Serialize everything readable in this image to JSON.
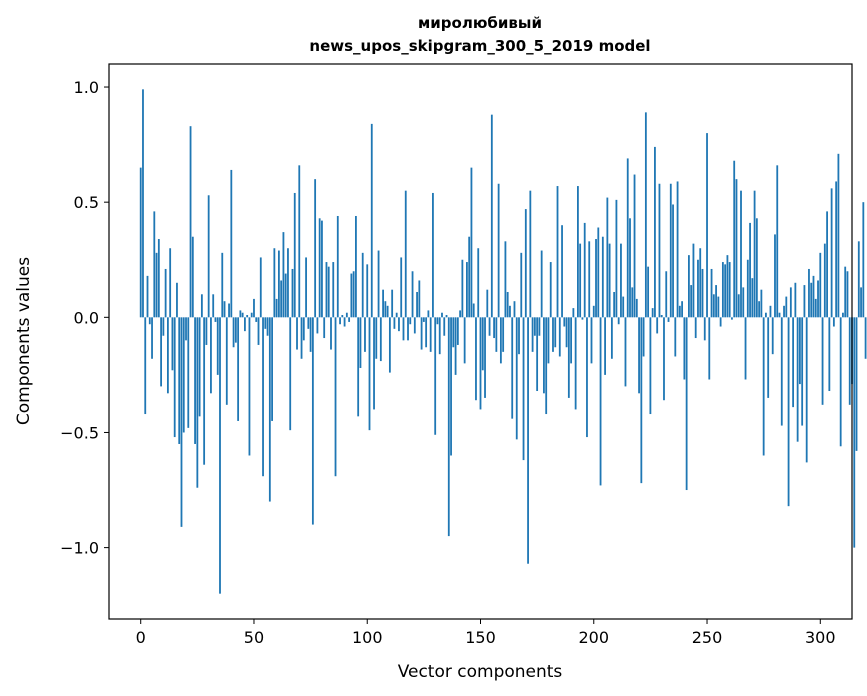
{
  "chart_data": {
    "type": "bar",
    "title_line1": "миролюбивый",
    "title_line2": "news_upos_skipgram_300_5_2019 model",
    "xlabel": "Vector components",
    "ylabel": "Components values",
    "xlim": [
      -14,
      314
    ],
    "ylim": [
      -1.31,
      1.1
    ],
    "xticks": [
      0,
      50,
      100,
      150,
      200,
      250,
      300
    ],
    "xtick_labels": [
      "0",
      "50",
      "100",
      "150",
      "200",
      "250",
      "300"
    ],
    "yticks": [
      -1.0,
      -0.5,
      0.0,
      0.5,
      1.0
    ],
    "ytick_labels": [
      "−1.0",
      "−0.5",
      "0.0",
      "0.5",
      "1.0"
    ],
    "bar_color": "#1f77b4",
    "values": [
      0.65,
      0.99,
      -0.42,
      0.18,
      -0.03,
      -0.18,
      0.46,
      0.28,
      0.34,
      -0.3,
      -0.08,
      0.21,
      -0.33,
      0.3,
      -0.23,
      -0.52,
      0.15,
      -0.55,
      -0.91,
      -0.5,
      -0.1,
      -0.48,
      0.83,
      0.35,
      -0.55,
      -0.74,
      -0.43,
      0.1,
      -0.64,
      -0.12,
      0.53,
      -0.33,
      0.1,
      -0.02,
      -0.25,
      -1.2,
      0.28,
      0.07,
      -0.38,
      0.06,
      0.64,
      -0.13,
      -0.11,
      -0.45,
      0.03,
      0.02,
      -0.06,
      0.01,
      -0.6,
      0.02,
      0.08,
      -0.02,
      -0.12,
      0.26,
      -0.69,
      -0.05,
      -0.08,
      -0.8,
      -0.45,
      0.3,
      0.08,
      0.29,
      0.16,
      0.37,
      0.19,
      0.3,
      -0.49,
      0.21,
      0.54,
      -0.14,
      0.66,
      -0.18,
      -0.1,
      0.26,
      -0.05,
      -0.15,
      -0.9,
      0.6,
      -0.07,
      0.43,
      0.42,
      -0.09,
      0.24,
      0.22,
      -0.14,
      0.24,
      -0.69,
      0.44,
      -0.03,
      0.01,
      -0.04,
      0.02,
      -0.02,
      0.19,
      0.2,
      0.44,
      -0.43,
      -0.22,
      0.28,
      -0.15,
      0.23,
      -0.49,
      0.84,
      -0.4,
      -0.18,
      0.29,
      -0.19,
      0.12,
      0.07,
      0.05,
      -0.24,
      0.12,
      -0.05,
      0.02,
      -0.06,
      0.26,
      -0.1,
      0.55,
      -0.1,
      -0.03,
      0.2,
      -0.07,
      0.11,
      0.16,
      -0.14,
      -0.02,
      -0.13,
      0.03,
      -0.15,
      0.54,
      -0.51,
      -0.03,
      -0.16,
      0.02,
      -0.08,
      0.01,
      -0.95,
      -0.6,
      -0.13,
      -0.25,
      -0.12,
      0.03,
      0.25,
      -0.2,
      0.24,
      0.35,
      0.65,
      0.06,
      -0.36,
      0.3,
      -0.4,
      -0.23,
      -0.35,
      0.12,
      -0.08,
      0.88,
      -0.09,
      -0.15,
      0.58,
      -0.2,
      -0.15,
      0.33,
      0.11,
      0.05,
      -0.44,
      0.07,
      -0.53,
      -0.16,
      0.28,
      -0.62,
      0.47,
      -1.07,
      0.55,
      -0.15,
      -0.08,
      -0.32,
      -0.08,
      0.29,
      -0.33,
      -0.42,
      -0.2,
      0.24,
      -0.15,
      -0.13,
      0.57,
      -0.17,
      0.4,
      -0.04,
      -0.13,
      -0.35,
      -0.2,
      0.04,
      -0.4,
      0.57,
      0.32,
      -0.01,
      0.41,
      -0.52,
      0.33,
      -0.2,
      0.05,
      0.34,
      0.39,
      -0.73,
      0.35,
      -0.25,
      0.52,
      0.32,
      -0.18,
      0.11,
      0.51,
      -0.03,
      0.32,
      0.09,
      -0.3,
      0.69,
      0.43,
      0.13,
      0.62,
      0.08,
      -0.33,
      -0.72,
      -0.17,
      0.89,
      0.22,
      -0.42,
      0.04,
      0.74,
      -0.07,
      0.58,
      0.01,
      -0.36,
      0.2,
      -0.02,
      0.58,
      0.49,
      -0.17,
      0.59,
      0.05,
      0.07,
      -0.27,
      -0.75,
      0.27,
      0.14,
      0.32,
      -0.09,
      0.25,
      0.3,
      0.21,
      -0.1,
      0.8,
      -0.27,
      0.21,
      0.1,
      0.14,
      0.09,
      -0.04,
      0.24,
      0.23,
      0.27,
      0.24,
      -0.01,
      0.68,
      0.6,
      0.1,
      0.55,
      0.13,
      -0.27,
      0.25,
      0.41,
      0.17,
      0.55,
      0.43,
      0.07,
      0.12,
      -0.6,
      0.02,
      -0.35,
      0.05,
      -0.16,
      0.36,
      0.66,
      0.02,
      -0.47,
      0.05,
      0.09,
      -0.82,
      0.13,
      -0.39,
      0.15,
      -0.54,
      -0.29,
      -0.47,
      0.14,
      -0.63,
      0.21,
      0.15,
      0.18,
      0.08,
      0.16,
      0.28,
      -0.38,
      0.32,
      0.46,
      -0.32,
      0.56,
      -0.04,
      0.59,
      0.71,
      -0.56,
      0.02,
      0.22,
      0.2,
      -0.38,
      -0.29,
      -1.0,
      -0.58,
      0.33,
      0.13,
      0.5,
      -0.18
    ]
  }
}
